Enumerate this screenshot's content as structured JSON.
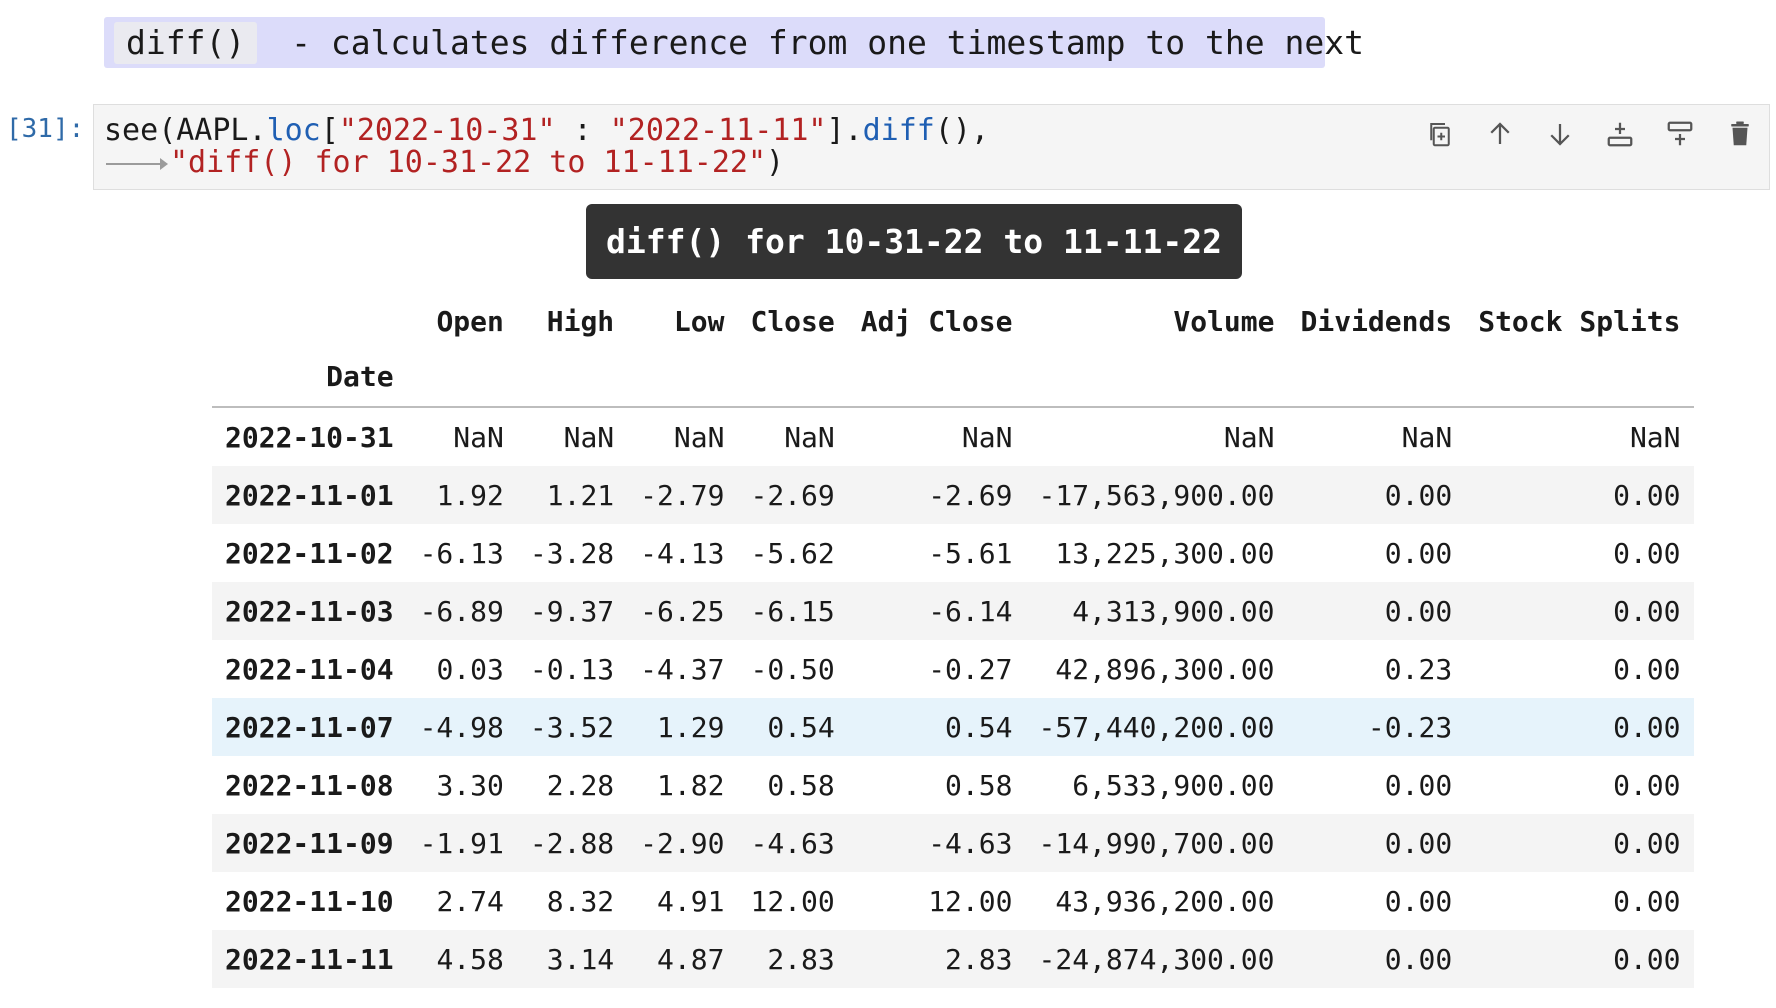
{
  "markdown": {
    "code": "diff()",
    "text": " - calculates difference from one timestamp to the next"
  },
  "code_cell": {
    "prompt": "[31]:",
    "line1": {
      "fn": "see",
      "p1": "(AAPL.",
      "attr": "loc",
      "p2": "[",
      "str1": "\"2022-10-31\"",
      "p3": " : ",
      "str2": "\"2022-11-11\"",
      "p4": "].",
      "attr2": "diff",
      "p5": "(),"
    },
    "line2": {
      "str": "\"diff() for 10-31-22 to 11-11-22\"",
      "p": ")"
    }
  },
  "toolbar": {
    "icons": [
      "duplicate-icon",
      "arrow-up-icon",
      "arrow-down-icon",
      "insert-below-icon",
      "insert-above-icon",
      "trash-icon"
    ]
  },
  "output": {
    "title": "diff() for 10-31-22 to 11-11-22",
    "columns": [
      "Open",
      "High",
      "Low",
      "Close",
      "Adj Close",
      "Volume",
      "Dividends",
      "Stock Splits"
    ],
    "index_name": "Date",
    "rows": [
      {
        "date": "2022-10-31",
        "values": [
          "NaN",
          "NaN",
          "NaN",
          "NaN",
          "NaN",
          "NaN",
          "NaN",
          "NaN"
        ]
      },
      {
        "date": "2022-11-01",
        "values": [
          "1.92",
          "1.21",
          "-2.79",
          "-2.69",
          "-2.69",
          "-17,563,900.00",
          "0.00",
          "0.00"
        ]
      },
      {
        "date": "2022-11-02",
        "values": [
          "-6.13",
          "-3.28",
          "-4.13",
          "-5.62",
          "-5.61",
          "13,225,300.00",
          "0.00",
          "0.00"
        ]
      },
      {
        "date": "2022-11-03",
        "values": [
          "-6.89",
          "-9.37",
          "-6.25",
          "-6.15",
          "-6.14",
          "4,313,900.00",
          "0.00",
          "0.00"
        ]
      },
      {
        "date": "2022-11-04",
        "values": [
          "0.03",
          "-0.13",
          "-4.37",
          "-0.50",
          "-0.27",
          "42,896,300.00",
          "0.23",
          "0.00"
        ]
      },
      {
        "date": "2022-11-07",
        "values": [
          "-4.98",
          "-3.52",
          "1.29",
          "0.54",
          "0.54",
          "-57,440,200.00",
          "-0.23",
          "0.00"
        ]
      },
      {
        "date": "2022-11-08",
        "values": [
          "3.30",
          "2.28",
          "1.82",
          "0.58",
          "0.58",
          "6,533,900.00",
          "0.00",
          "0.00"
        ]
      },
      {
        "date": "2022-11-09",
        "values": [
          "-1.91",
          "-2.88",
          "-2.90",
          "-4.63",
          "-4.63",
          "-14,990,700.00",
          "0.00",
          "0.00"
        ]
      },
      {
        "date": "2022-11-10",
        "values": [
          "2.74",
          "8.32",
          "4.91",
          "12.00",
          "12.00",
          "43,936,200.00",
          "0.00",
          "0.00"
        ]
      },
      {
        "date": "2022-11-11",
        "values": [
          "4.58",
          "3.14",
          "4.87",
          "2.83",
          "2.83",
          "-24,874,300.00",
          "0.00",
          "0.00"
        ]
      }
    ]
  }
}
